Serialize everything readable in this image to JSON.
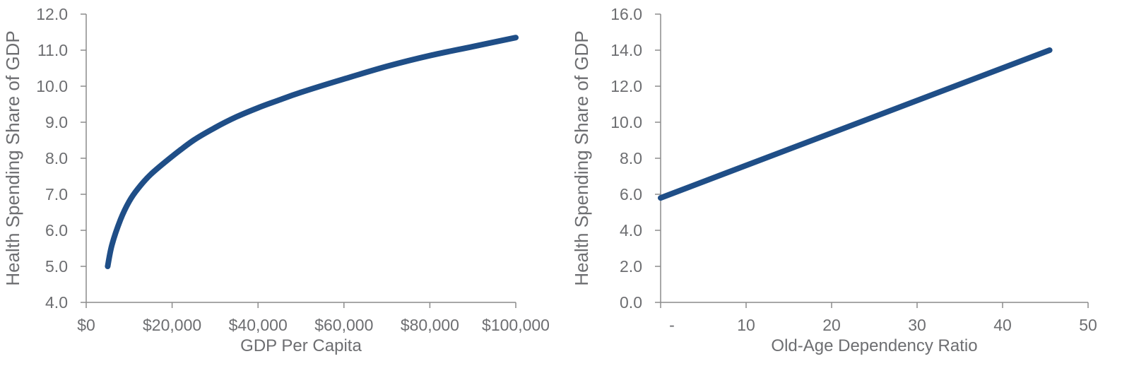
{
  "chart_data": [
    {
      "type": "line",
      "title": "",
      "xlabel": "GDP Per Capita",
      "ylabel": "Health Spending Share of GDP",
      "xlim": [
        0,
        100000
      ],
      "ylim": [
        4.0,
        12.0
      ],
      "x_ticks": [
        0,
        20000,
        40000,
        60000,
        80000,
        100000
      ],
      "x_tick_labels": [
        "$0",
        "$20,000",
        "$40,000",
        "$60,000",
        "$80,000",
        "$100,000"
      ],
      "y_ticks": [
        4,
        5,
        6,
        7,
        8,
        9,
        10,
        11,
        12
      ],
      "y_tick_labels": [
        "4.0",
        "5.0",
        "6.0",
        "7.0",
        "8.0",
        "9.0",
        "10.0",
        "11.0",
        "12.0"
      ],
      "grid": false,
      "series": [
        {
          "color": "#1f4e87",
          "x": [
            5000,
            6000,
            8000,
            10000,
            12000,
            15000,
            20000,
            25000,
            30000,
            35000,
            40000,
            45000,
            50000,
            60000,
            70000,
            80000,
            90000,
            100000
          ],
          "y": [
            5.0,
            5.6,
            6.3,
            6.8,
            7.15,
            7.55,
            8.05,
            8.5,
            8.85,
            9.15,
            9.4,
            9.62,
            9.83,
            10.2,
            10.55,
            10.85,
            11.1,
            11.35
          ]
        }
      ]
    },
    {
      "type": "line",
      "title": "",
      "xlabel": "Old-Age Dependency Ratio",
      "ylabel": "Health Spending Share of GDP",
      "xlim": [
        0,
        50
      ],
      "ylim": [
        0.0,
        16.0
      ],
      "x_ticks": [
        0,
        10,
        20,
        30,
        40,
        50
      ],
      "x_tick_labels": [
        "-",
        "10",
        "20",
        "30",
        "40",
        "50"
      ],
      "y_ticks": [
        0,
        2,
        4,
        6,
        8,
        10,
        12,
        14,
        16
      ],
      "y_tick_labels": [
        "0.0",
        "2.0",
        "4.0",
        "6.0",
        "8.0",
        "10.0",
        "12.0",
        "14.0",
        "16.0"
      ],
      "grid": false,
      "series": [
        {
          "color": "#1f4e87",
          "x": [
            0,
            45.5
          ],
          "y": [
            5.8,
            14.0
          ]
        }
      ]
    }
  ]
}
